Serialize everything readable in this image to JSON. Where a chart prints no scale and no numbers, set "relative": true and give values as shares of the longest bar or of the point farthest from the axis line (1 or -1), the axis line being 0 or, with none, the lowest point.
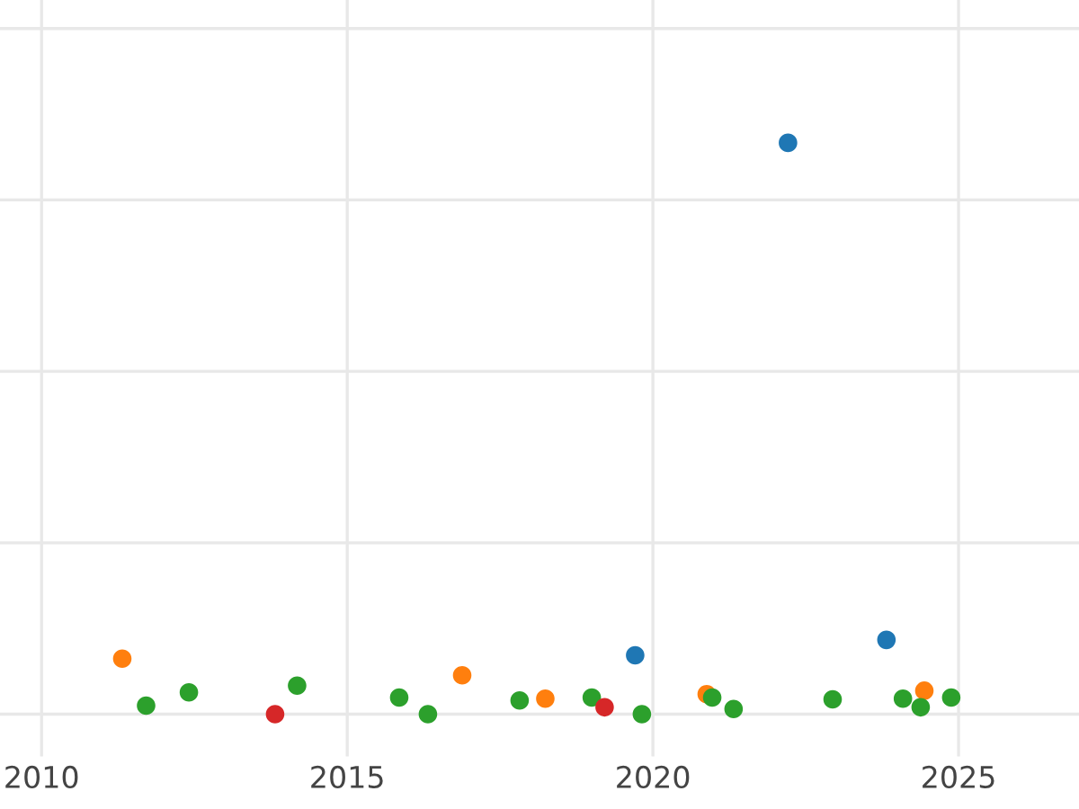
{
  "chart_data": {
    "type": "scatter",
    "relative": true,
    "xlim": [
      2009.32,
      2026.97
    ],
    "xticks": [
      2010,
      2015,
      2020,
      2025
    ],
    "tick_labels": "x",
    "grid": true,
    "marker": "circle",
    "series": [
      {
        "color": "#1f77b4",
        "x": [
          2019.71,
          2022.21,
          2023.82
        ],
        "values": [
          0.103,
          1,
          0.13
        ]
      },
      {
        "color": "#ff7f0e",
        "x": [
          2011.32,
          2016.88,
          2018.24,
          2020.88,
          2024.44
        ],
        "values": [
          0.097,
          0.068,
          0.027,
          0.035,
          0.041
        ]
      },
      {
        "color": "#2ca02c",
        "x": [
          2011.71,
          2012.41,
          2014.18,
          2015.85,
          2016.32,
          2017.82,
          2019.0,
          2019.82,
          2020.97,
          2021.32,
          2022.94,
          2024.09,
          2024.38,
          2024.88
        ],
        "values": [
          0.015,
          0.038,
          0.05,
          0.029,
          0,
          0.024,
          0.029,
          0,
          0.029,
          0.009,
          0.026,
          0.027,
          0.012,
          0.029
        ]
      },
      {
        "color": "#d62728",
        "x": [
          2013.82,
          2019.21
        ],
        "values": [
          0,
          0.012
        ]
      }
    ]
  }
}
